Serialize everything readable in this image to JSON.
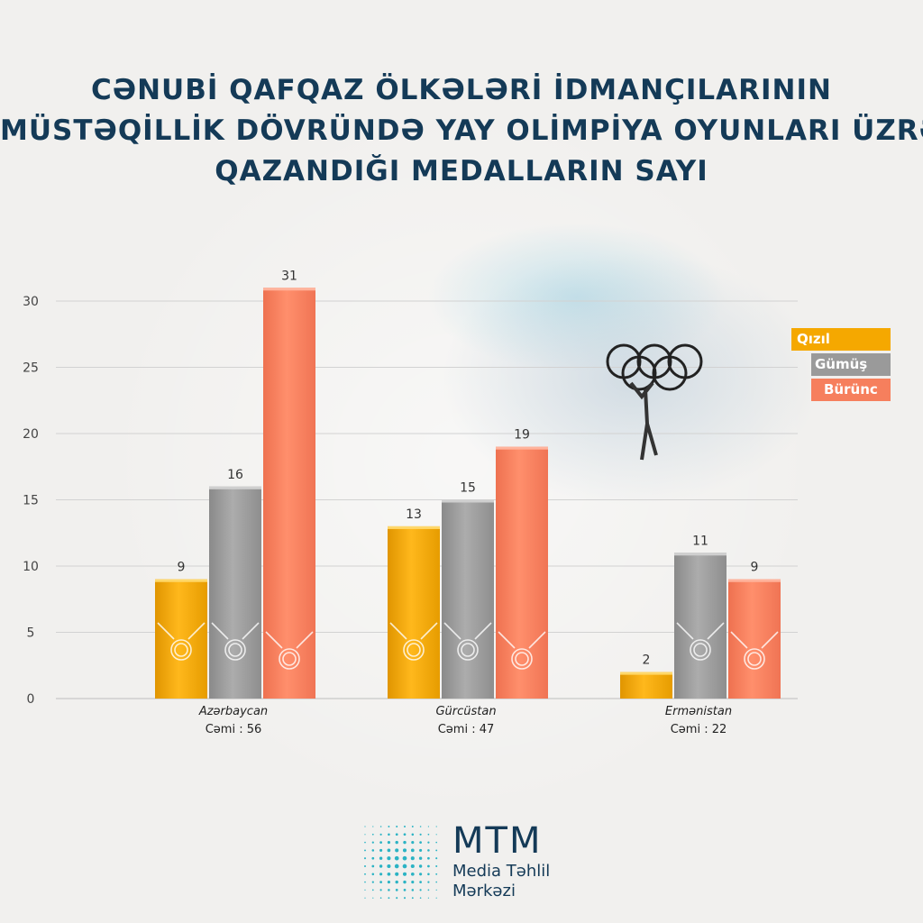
{
  "title_lines": [
    "CƏNUBİ QAFQAZ ÖLKƏLƏRİ İDMANÇILARININ",
    "MÜSTƏQİLLİK DÖVRÜNDƏ YAY OLİMPİYA OYUNLARI ÜZRƏ",
    "QAZANDIĞI MEDALLARIN SAYI"
  ],
  "colors": {
    "gold": "#f5a800",
    "silver": "#9a9a9a",
    "bronze": "#f67f5d",
    "title": "#143a57"
  },
  "chart_data": {
    "type": "bar",
    "categories": [
      "Azərbaycan",
      "Gürcüstan",
      "Ermənistan"
    ],
    "totals": [
      "Cəmi : 56",
      "Cəmi : 47",
      "Cəmi : 22"
    ],
    "series": [
      {
        "name": "Qızıl",
        "values": [
          9,
          13,
          2
        ]
      },
      {
        "name": "Gümüş",
        "values": [
          16,
          15,
          11
        ]
      },
      {
        "name": "Bürünc",
        "values": [
          31,
          19,
          9
        ]
      }
    ],
    "yticks": [
      0,
      5,
      10,
      15,
      20,
      25,
      30
    ],
    "ylim": [
      0,
      31
    ],
    "grid": true,
    "legend_position": "right"
  },
  "logo": {
    "abbr": "MTM",
    "line1": "Media Təhlil",
    "line2": "Mərkəzi"
  }
}
